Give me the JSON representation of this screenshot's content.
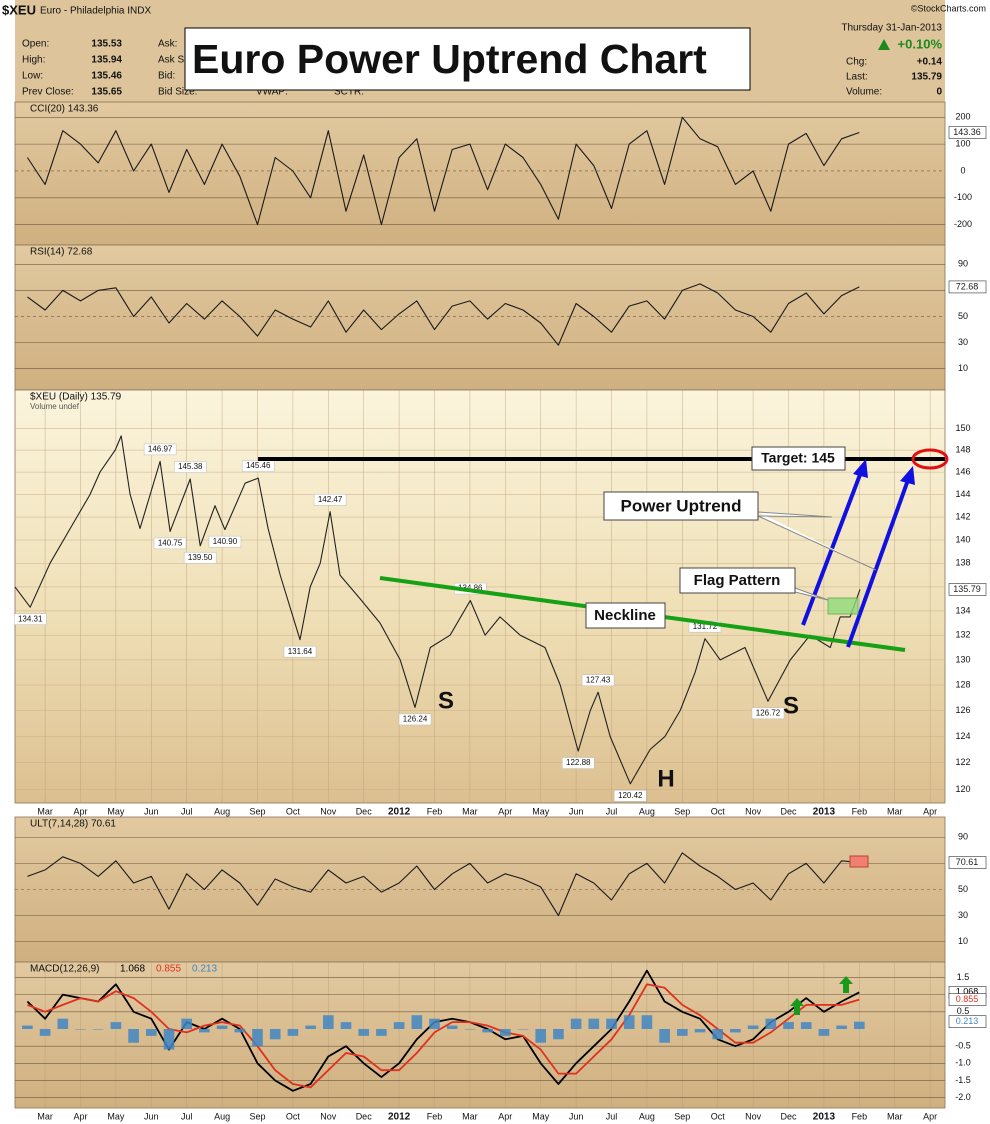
{
  "header": {
    "symbol": "$XEU",
    "name": "Euro - Philadelphia INDX",
    "copyright": "©StockCharts.com",
    "date": "Thursday  31-Jan-2013",
    "change_pct": "+0.10%",
    "quote": [
      [
        "Open:",
        "135.53"
      ],
      [
        "High:",
        "135.94"
      ],
      [
        "Low:",
        "135.46"
      ],
      [
        "Prev Close:",
        "135.65"
      ]
    ],
    "book": [
      "Ask:",
      "Ask S",
      "Bid:",
      "Bid Size:"
    ],
    "extra": [
      "VWAP:",
      "SCTR:"
    ],
    "stats": [
      [
        "Chg:",
        "+0.14"
      ],
      [
        "Last:",
        "135.79"
      ],
      [
        "Volume:",
        "0"
      ]
    ]
  },
  "title": "Euro Power Uptrend Chart",
  "chart_data": [
    {
      "type": "line",
      "label": "CCI(20) 143.36",
      "x": [
        -0.5,
        0,
        0.5,
        1,
        1.5,
        2,
        2.5,
        3,
        3.5,
        4,
        4.5,
        5,
        5.5,
        6,
        6.5,
        7,
        7.5,
        8,
        8.5,
        9,
        9.5,
        10,
        10.5,
        11,
        11.5,
        12,
        12.5,
        13,
        13.5,
        14,
        14.5,
        15,
        15.5,
        16,
        16.5,
        17,
        17.5,
        18,
        18.5,
        19,
        19.5,
        20,
        20.5,
        21,
        21.5,
        22,
        22.5,
        23
      ],
      "xlim": [
        -0.85,
        25.42
      ],
      "ylim": [
        -276,
        257
      ],
      "yticks": [
        200,
        100,
        0,
        -100,
        -200
      ],
      "series": [
        {
          "color": "#1a1a1a",
          "values": [
            50,
            -50,
            150,
            100,
            30,
            150,
            0,
            100,
            -80,
            80,
            -50,
            100,
            -20,
            -200,
            50,
            0,
            -100,
            150,
            -150,
            60,
            -200,
            50,
            120,
            -150,
            80,
            100,
            -70,
            100,
            50,
            -50,
            -180,
            100,
            20,
            -140,
            100,
            150,
            -50,
            200,
            120,
            90,
            -50,
            0,
            -150,
            100,
            140,
            20,
            120,
            143.36
          ]
        }
      ]
    },
    {
      "type": "line",
      "label": "RSI(14) 72.68",
      "x": [
        -0.5,
        0,
        0.5,
        1,
        1.5,
        2,
        2.5,
        3,
        3.5,
        4,
        4.5,
        5,
        5.5,
        6,
        6.5,
        7,
        7.5,
        8,
        8.5,
        9,
        9.5,
        10,
        10.5,
        11,
        11.5,
        12,
        12.5,
        13,
        13.5,
        14,
        14.5,
        15,
        15.5,
        16,
        16.5,
        17,
        17.5,
        18,
        18.5,
        19,
        19.5,
        20,
        20.5,
        21,
        21.5,
        22,
        22.5,
        23
      ],
      "xlim": [
        -0.85,
        25.42
      ],
      "ylim": [
        -6.3,
        104.8
      ],
      "yticks": [
        90,
        70,
        50,
        30,
        10
      ],
      "series": [
        {
          "color": "#1a1a1a",
          "values": [
            65,
            55,
            70,
            62,
            70,
            72,
            50,
            65,
            45,
            60,
            48,
            62,
            50,
            35,
            55,
            48,
            42,
            62,
            38,
            55,
            40,
            52,
            62,
            40,
            58,
            62,
            48,
            60,
            55,
            45,
            28,
            60,
            50,
            38,
            58,
            62,
            48,
            70,
            75,
            68,
            55,
            50,
            38,
            60,
            68,
            52,
            66,
            72.68
          ]
        }
      ]
    },
    {
      "type": "line",
      "label": "$XEU (Daily) 135.79",
      "sublabel": "Volume undef",
      "log_scale": true,
      "x": [
        -0.85,
        -0.42,
        0.14,
        0.71,
        1.27,
        1.55,
        1.98,
        2.15,
        2.4,
        2.68,
        3.25,
        3.53,
        4.1,
        4.38,
        4.8,
        5.08,
        5.65,
        6.02,
        6.3,
        6.64,
        7.2,
        7.49,
        7.77,
        8.05,
        8.33,
        8.9,
        9.46,
        10.03,
        10.45,
        10.88,
        11.44,
        12.01,
        12.43,
        12.85,
        13.42,
        14.12,
        14.55,
        15.06,
        15.4,
        15.62,
        15.96,
        16.53,
        17.09,
        17.51,
        17.94,
        18.36,
        18.64,
        19.07,
        19.77,
        20.42,
        21.05,
        21.61,
        22.18,
        22.46,
        22.74,
        23.02
      ],
      "xlim": [
        -0.85,
        25.42
      ],
      "ylim": [
        119,
        153.6
      ],
      "yticks": [
        120,
        122,
        124,
        126,
        128,
        130,
        132,
        134,
        136,
        138,
        140,
        142,
        144,
        146,
        148,
        150
      ],
      "xticks": [
        {
          "value": 0,
          "label": "Mar"
        },
        {
          "value": 1,
          "label": "Apr"
        },
        {
          "value": 2,
          "label": "May"
        },
        {
          "value": 3,
          "label": "Jun"
        },
        {
          "value": 4,
          "label": "Jul"
        },
        {
          "value": 5,
          "label": "Aug"
        },
        {
          "value": 6,
          "label": "Sep"
        },
        {
          "value": 7,
          "label": "Oct"
        },
        {
          "value": 8,
          "label": "Nov"
        },
        {
          "value": 9,
          "label": "Dec"
        },
        {
          "value": 10,
          "label": "2012"
        },
        {
          "value": 11,
          "label": "Feb"
        },
        {
          "value": 12,
          "label": "Mar"
        },
        {
          "value": 13,
          "label": "Apr"
        },
        {
          "value": 14,
          "label": "May"
        },
        {
          "value": 15,
          "label": "Jun"
        },
        {
          "value": 16,
          "label": "Jul"
        },
        {
          "value": 17,
          "label": "Aug"
        },
        {
          "value": 18,
          "label": "Sep"
        },
        {
          "value": 19,
          "label": "Oct"
        },
        {
          "value": 20,
          "label": "Nov"
        },
        {
          "value": 21,
          "label": "Dec"
        },
        {
          "value": 22,
          "label": "2013"
        },
        {
          "value": 23,
          "label": "Feb"
        },
        {
          "value": 24,
          "label": "Mar"
        },
        {
          "value": 25,
          "label": "Apr"
        }
      ],
      "series": [
        {
          "color": "#222222",
          "values": [
            136,
            134.31,
            138,
            141,
            144,
            146,
            148,
            149.3,
            144,
            141,
            146.97,
            140.75,
            145.38,
            139.5,
            143,
            140.9,
            145,
            145.46,
            141,
            137,
            131.64,
            136,
            138,
            142.47,
            137,
            135,
            133,
            130,
            126.24,
            131,
            132,
            134.86,
            132,
            133.5,
            132,
            131,
            128,
            122.88,
            126,
            127.43,
            124,
            120.42,
            123,
            124,
            126,
            129,
            131.72,
            130,
            131,
            126.72,
            130,
            132,
            131,
            133.5,
            133.5,
            135.79
          ],
          "value_labels": [
            null,
            "134.31",
            null,
            null,
            null,
            null,
            null,
            null,
            null,
            null,
            "146.97",
            "140.75",
            "145.38",
            "139.50",
            null,
            "140.90",
            null,
            "145.46",
            null,
            null,
            "131.64",
            null,
            null,
            "142.47",
            null,
            null,
            null,
            null,
            "126.24",
            null,
            null,
            "134.86",
            null,
            null,
            null,
            null,
            null,
            "122.88",
            null,
            "127.43",
            null,
            "120.42",
            null,
            null,
            null,
            null,
            "131.72",
            null,
            null,
            "126.72",
            null,
            null,
            null,
            null,
            null,
            null
          ]
        }
      ],
      "annotations": [
        "Target: 145",
        "Power Uptrend",
        "Flag Pattern",
        "Neckline",
        "S",
        "H",
        "S"
      ]
    },
    {
      "type": "line",
      "label": "ULT(7,14,28) 70.61",
      "x": [
        -0.5,
        0,
        0.5,
        1,
        1.5,
        2,
        2.5,
        3,
        3.5,
        4,
        4.5,
        5,
        5.5,
        6,
        6.5,
        7,
        7.5,
        8,
        8.5,
        9,
        9.5,
        10,
        10.5,
        11,
        11.5,
        12,
        12.5,
        13,
        13.5,
        14,
        14.5,
        15,
        15.5,
        16,
        16.5,
        17,
        17.5,
        18,
        18.5,
        19,
        19.5,
        20,
        20.5,
        21,
        21.5,
        22,
        22.5,
        23
      ],
      "xlim": [
        -0.85,
        25.42
      ],
      "ylim": [
        -5.5,
        105.5
      ],
      "yticks": [
        90,
        70,
        50,
        30,
        10
      ],
      "series": [
        {
          "color": "#1a1a1a",
          "values": [
            60,
            65,
            75,
            70,
            60,
            72,
            55,
            60,
            35,
            62,
            50,
            65,
            55,
            38,
            58,
            52,
            48,
            65,
            55,
            60,
            48,
            55,
            68,
            50,
            62,
            70,
            55,
            62,
            58,
            52,
            30,
            62,
            55,
            42,
            62,
            70,
            55,
            78,
            68,
            60,
            50,
            55,
            42,
            62,
            70,
            55,
            72,
            70.61
          ]
        }
      ]
    },
    {
      "type": "line",
      "label": "MACD(12,26,9)",
      "x": [
        -0.5,
        0,
        0.5,
        1,
        1.5,
        2,
        2.5,
        3,
        3.5,
        4,
        4.5,
        5,
        5.5,
        6,
        6.5,
        7,
        7.5,
        8,
        8.5,
        9,
        9.5,
        10,
        10.5,
        11,
        11.5,
        12,
        12.5,
        13,
        13.5,
        14,
        14.5,
        15,
        15.5,
        16,
        16.5,
        17,
        17.5,
        18,
        18.5,
        19,
        19.5,
        20,
        20.5,
        21,
        21.5,
        22,
        22.5,
        23
      ],
      "xlim": [
        -0.85,
        25.42
      ],
      "ylim": [
        -2.3,
        1.95
      ],
      "yticks": [
        1.5,
        {
          "value": 1,
          "label": "1.0"
        },
        0.5,
        -0.5,
        {
          "value": -1,
          "label": "-1.0"
        },
        -1.5,
        {
          "value": -2,
          "label": "-2.0"
        }
      ],
      "xticks": [
        {
          "value": 0,
          "label": "Mar"
        },
        {
          "value": 1,
          "label": "Apr"
        },
        {
          "value": 2,
          "label": "May"
        },
        {
          "value": 3,
          "label": "Jun"
        },
        {
          "value": 4,
          "label": "Jul"
        },
        {
          "value": 5,
          "label": "Aug"
        },
        {
          "value": 6,
          "label": "Sep"
        },
        {
          "value": 7,
          "label": "Oct"
        },
        {
          "value": 8,
          "label": "Nov"
        },
        {
          "value": 9,
          "label": "Dec"
        },
        {
          "value": 10,
          "label": "2012"
        },
        {
          "value": 11,
          "label": "Feb"
        },
        {
          "value": 12,
          "label": "Mar"
        },
        {
          "value": 13,
          "label": "Apr"
        },
        {
          "value": 14,
          "label": "May"
        },
        {
          "value": 15,
          "label": "Jun"
        },
        {
          "value": 16,
          "label": "Jul"
        },
        {
          "value": 17,
          "label": "Aug"
        },
        {
          "value": 18,
          "label": "Sep"
        },
        {
          "value": 19,
          "label": "Oct"
        },
        {
          "value": 20,
          "label": "Nov"
        },
        {
          "value": 21,
          "label": "Dec"
        },
        {
          "value": 22,
          "label": "2013"
        },
        {
          "value": 23,
          "label": "Feb"
        },
        {
          "value": 24,
          "label": "Mar"
        },
        {
          "value": 25,
          "label": "Apr"
        }
      ],
      "series": [
        {
          "color": "#000000",
          "values": [
            0.8,
            0.3,
            1.0,
            0.9,
            0.8,
            1.3,
            0.5,
            0.3,
            -0.6,
            0.2,
            0.0,
            0.3,
            0.0,
            -1.0,
            -1.5,
            -1.8,
            -1.6,
            -0.8,
            -0.5,
            -1.0,
            -1.4,
            -1.0,
            -0.3,
            0.2,
            0.3,
            0.2,
            0.0,
            -0.3,
            -0.2,
            -1.0,
            -1.6,
            -1.0,
            -0.5,
            0.0,
            0.8,
            1.7,
            0.8,
            0.5,
            0.3,
            -0.3,
            -0.5,
            -0.3,
            0.2,
            0.5,
            0.9,
            0.5,
            0.8,
            1.068
          ]
        },
        {
          "color": "#e0301e",
          "values": [
            0.7,
            0.5,
            0.7,
            0.9,
            0.8,
            1.1,
            0.9,
            0.5,
            0.0,
            -0.1,
            0.1,
            0.2,
            0.1,
            -0.5,
            -1.2,
            -1.6,
            -1.7,
            -1.2,
            -0.7,
            -0.8,
            -1.2,
            -1.2,
            -0.7,
            -0.1,
            0.2,
            0.2,
            0.1,
            -0.1,
            -0.2,
            -0.6,
            -1.3,
            -1.3,
            -0.8,
            -0.3,
            0.4,
            1.3,
            1.2,
            0.7,
            0.4,
            0.0,
            -0.4,
            -0.4,
            -0.1,
            0.3,
            0.7,
            0.7,
            0.7,
            0.855
          ]
        },
        {
          "type": "bar",
          "color": "#3f86c4",
          "values": [
            0.1,
            -0.2,
            0.3,
            0.0,
            0.0,
            0.2,
            -0.4,
            -0.2,
            -0.6,
            0.3,
            -0.1,
            0.1,
            -0.1,
            -0.5,
            -0.3,
            -0.2,
            0.1,
            0.4,
            0.2,
            -0.2,
            -0.2,
            0.2,
            0.4,
            0.3,
            0.1,
            0.0,
            -0.1,
            -0.2,
            0.0,
            -0.4,
            -0.3,
            0.3,
            0.3,
            0.3,
            0.4,
            0.4,
            -0.4,
            -0.2,
            -0.1,
            -0.3,
            -0.1,
            0.1,
            0.3,
            0.2,
            0.2,
            -0.2,
            0.1,
            0.213
          ]
        }
      ]
    }
  ]
}
